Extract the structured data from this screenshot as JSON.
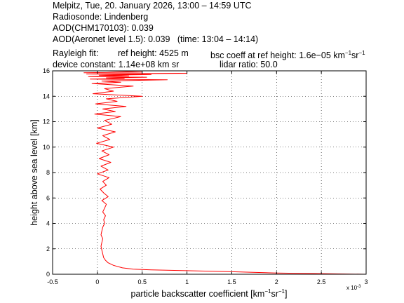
{
  "header": {
    "line1": "Melpitz, Tue, 20. January 2026, 13:00 – 14:59 UTC",
    "line2": "Radiosonde: Lindenberg",
    "line3": "AOD(CHM170103): 0.039",
    "line4": "AOD(Aeronet level 1.5): 0.039   (time: 13:04 – 14:14)",
    "rayleigh_label": "Rayleigh fit:",
    "ref_height": "ref height: 4525 m",
    "bsc_coeff_prefix": "bsc coeff at ref height: 1.6e−05 km",
    "bsc_unit_mid": "sr",
    "device_constant": "device constant: 1.14e+08 km sr",
    "lidar_ratio": "lidar ratio: 50.0"
  },
  "colors": {
    "line": "#ff0000",
    "axes": "#000000",
    "grid": "#000000",
    "background": "#ffffff"
  },
  "chart_data": {
    "type": "line",
    "xlabel": "particle backscatter coefficient [km",
    "xlabel_mid": "sr",
    "xlabel_end": "]",
    "exp_label": "x 10",
    "exp_power": "-3",
    "ylabel": "height above sea level [km]",
    "xlim": [
      -0.5,
      3
    ],
    "ylim": [
      0,
      16
    ],
    "x_ticks": [
      -0.5,
      0,
      0.5,
      1,
      1.5,
      2,
      2.5,
      3
    ],
    "x_tick_labels": [
      "-0.5",
      "0",
      "0.5",
      "1",
      "1.5",
      "2",
      "2.5",
      "3"
    ],
    "y_ticks": [
      0,
      2,
      4,
      6,
      8,
      10,
      12,
      14,
      16
    ],
    "y_tick_labels": [
      "0",
      "2",
      "4",
      "6",
      "8",
      "10",
      "12",
      "14",
      "16"
    ],
    "grid": true,
    "series": [
      {
        "color": "#ff0000",
        "x": [
          3.0,
          2.0,
          1.5,
          1.2,
          0.9,
          0.6,
          0.4,
          0.28,
          0.18,
          0.12,
          0.09,
          0.07,
          0.06,
          0.05,
          0.04,
          0.05,
          0.06,
          0.04,
          0.05,
          0.06,
          0.08,
          0.07,
          0.09,
          0.06,
          0.08,
          0.1,
          0.05,
          0.12,
          0.07,
          0.03,
          0.1,
          0.06,
          0.13,
          0.0,
          0.12,
          0.04,
          0.15,
          0.02,
          0.13,
          0.05,
          0.18,
          -0.01,
          0.14,
          0.06,
          0.2,
          0.0,
          0.16,
          0.08,
          0.26,
          -0.03,
          0.2,
          0.06,
          0.32,
          -0.02,
          0.22,
          0.1,
          0.5,
          -0.05,
          0.18,
          0.08,
          0.4,
          -0.06,
          0.26,
          0.05,
          0.78,
          -0.08,
          0.3,
          0.1,
          0.55,
          -0.1,
          0.35,
          0.02,
          0.6,
          -0.12,
          1.0,
          -0.15,
          0.5,
          0.1
        ],
        "y": [
          0.0,
          0.1,
          0.2,
          0.25,
          0.3,
          0.35,
          0.4,
          0.5,
          0.7,
          0.9,
          1.1,
          1.3,
          1.6,
          1.9,
          2.2,
          2.5,
          2.8,
          3.1,
          3.4,
          3.7,
          4.0,
          4.3,
          4.6,
          4.9,
          5.2,
          5.5,
          5.8,
          6.1,
          6.4,
          6.7,
          7.0,
          7.3,
          7.6,
          7.9,
          8.2,
          8.5,
          8.8,
          9.1,
          9.4,
          9.7,
          10.0,
          10.3,
          10.6,
          10.9,
          11.2,
          11.5,
          11.8,
          12.1,
          12.4,
          12.6,
          12.8,
          13.0,
          13.2,
          13.4,
          13.6,
          13.8,
          14.0,
          14.2,
          14.4,
          14.6,
          14.8,
          15.0,
          15.1,
          15.2,
          15.3,
          15.35,
          15.4,
          15.45,
          15.5,
          15.55,
          15.6,
          15.65,
          15.7,
          15.75,
          15.8,
          15.85,
          15.9,
          16.0
        ]
      }
    ]
  }
}
